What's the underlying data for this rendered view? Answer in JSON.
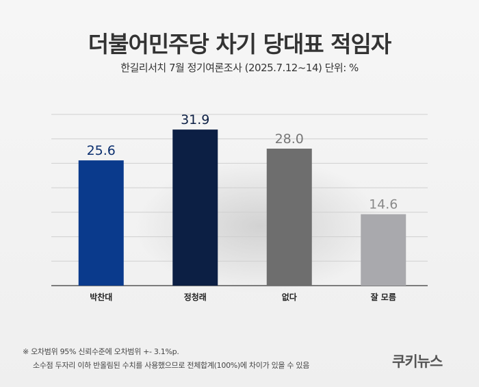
{
  "header": {
    "title": "더불어민주당 차기 당대표 적임자",
    "subtitle": "한길리서치 7월 정기여론조사 (2025.7.12~14) 단위: %"
  },
  "chart_data": {
    "type": "bar",
    "categories": [
      "박찬대",
      "정청래",
      "없다",
      "잘 모름"
    ],
    "values": [
      25.6,
      31.9,
      28.0,
      14.6
    ],
    "value_labels": [
      "25.6",
      "31.9",
      "28.0",
      "14.6"
    ],
    "colors": [
      "#0a3a8c",
      "#0c1f44",
      "#6e6e6e",
      "#a9a9ad"
    ],
    "label_colors": [
      "#0a2e6e",
      "#0c1f44",
      "#777777",
      "#8a8a8a"
    ],
    "ylim": [
      0,
      35
    ],
    "grid": true
  },
  "notes": {
    "line1": "※ 오차범위 95% 신뢰수준에 오차범위 +- 3.1%p.",
    "line2": "소수점 두자리 이하 반올림된 수치를 사용했으므로 전체합계(100%)에 차이가 있을 수 있음"
  },
  "brand": {
    "logo_text": "쿠키뉴스"
  }
}
